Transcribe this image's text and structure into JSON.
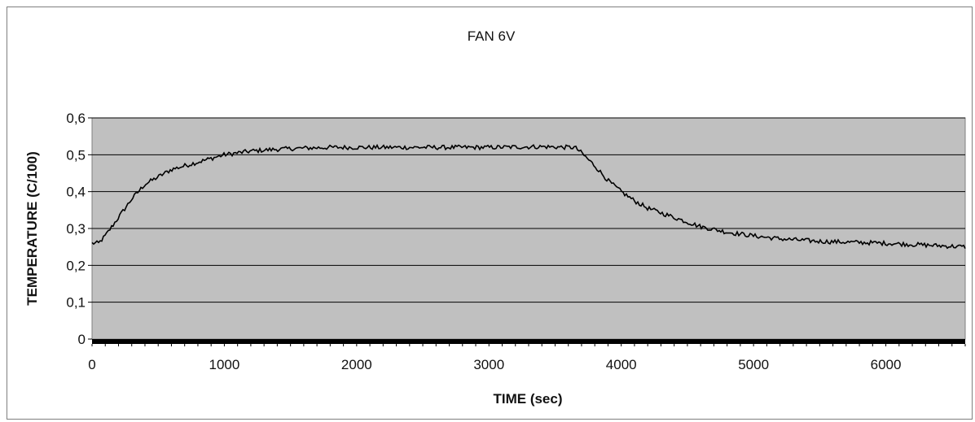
{
  "chart_data": {
    "type": "line",
    "title": "FAN 6V",
    "xlabel": "TIME (sec)",
    "ylabel": "TEMPERATURE (C/100)",
    "xlim": [
      0,
      6600
    ],
    "ylim": [
      0,
      0.6
    ],
    "x_ticks": [
      "0",
      "1000",
      "2000",
      "3000",
      "4000",
      "5000",
      "6000"
    ],
    "y_ticks": [
      "0",
      "0,1",
      "0,2",
      "0,3",
      "0,4",
      "0,5",
      "0,6"
    ],
    "grid": true,
    "legend": "none",
    "colors": {
      "plot_background": "#c0c0c0",
      "line": "#000000",
      "grid": "#000000"
    },
    "series": [
      {
        "x": [
          0,
          50,
          100,
          200,
          300,
          400,
          500,
          600,
          700,
          800,
          900,
          1000,
          1200,
          1400,
          1600,
          1800,
          2000,
          2500,
          3000,
          3400,
          3600,
          3650,
          3700,
          3800,
          3900,
          4000,
          4100,
          4200,
          4400,
          4600,
          4800,
          5000,
          5200,
          5500,
          5800,
          6000,
          6300,
          6600
        ],
        "y": [
          0.26,
          0.26,
          0.28,
          0.33,
          0.38,
          0.42,
          0.44,
          0.46,
          0.47,
          0.48,
          0.49,
          0.5,
          0.51,
          0.515,
          0.518,
          0.52,
          0.52,
          0.52,
          0.52,
          0.522,
          0.52,
          0.52,
          0.505,
          0.47,
          0.43,
          0.4,
          0.375,
          0.355,
          0.33,
          0.305,
          0.29,
          0.28,
          0.272,
          0.265,
          0.262,
          0.26,
          0.255,
          0.25
        ]
      }
    ]
  }
}
